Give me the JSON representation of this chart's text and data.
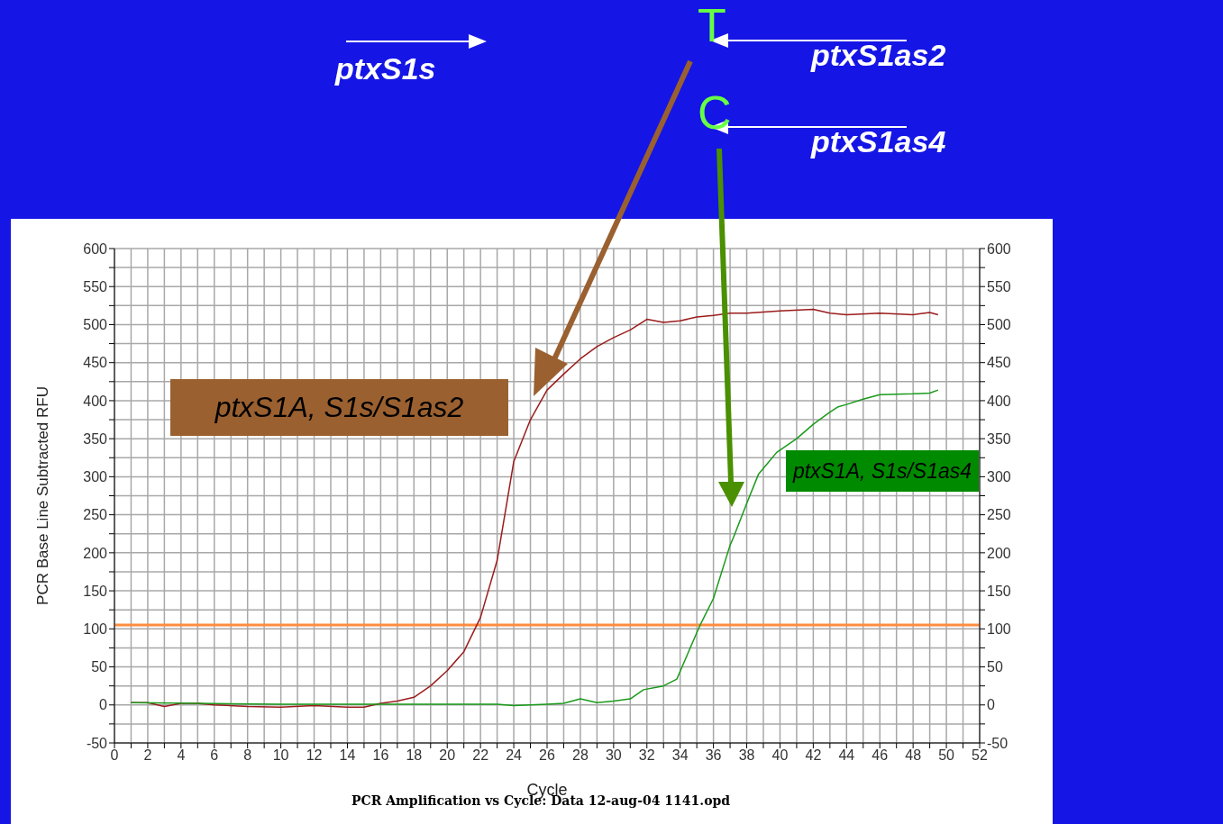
{
  "chart_data": {
    "type": "line",
    "xlabel": "Cycle",
    "ylabel": "PCR Base Line Subtracted RFU",
    "xlim": [
      0,
      52
    ],
    "ylim": [
      -50,
      600
    ],
    "y2lim": [
      -50,
      600
    ],
    "xticks": [
      0,
      {
        "value": 1,
        "label": null
      },
      2,
      {
        "value": 3,
        "label": null
      },
      4,
      {
        "value": 5,
        "label": null
      },
      6,
      {
        "value": 7,
        "label": null
      },
      8,
      {
        "value": 9,
        "label": null
      },
      10,
      {
        "value": 11,
        "label": null
      },
      12,
      {
        "value": 13,
        "label": null
      },
      14,
      {
        "value": 15,
        "label": null
      },
      16,
      {
        "value": 17,
        "label": null
      },
      18,
      {
        "value": 19,
        "label": null
      },
      20,
      {
        "value": 21,
        "label": null
      },
      22,
      {
        "value": 23,
        "label": null
      },
      24,
      {
        "value": 25,
        "label": null
      },
      26,
      {
        "value": 27,
        "label": null
      },
      28,
      {
        "value": 29,
        "label": null
      },
      30,
      {
        "value": 31,
        "label": null
      },
      32,
      {
        "value": 33,
        "label": null
      },
      34,
      {
        "value": 35,
        "label": null
      },
      36,
      {
        "value": 37,
        "label": null
      },
      38,
      {
        "value": 39,
        "label": null
      },
      40,
      {
        "value": 41,
        "label": null
      },
      42,
      {
        "value": 43,
        "label": null
      },
      44,
      {
        "value": 45,
        "label": null
      },
      46,
      {
        "value": 47,
        "label": null
      },
      48,
      {
        "value": 49,
        "label": null
      },
      50,
      {
        "value": 51,
        "label": null
      },
      52
    ],
    "yticks": [
      -50,
      {
        "value": -25,
        "label": null
      },
      0,
      {
        "value": 25,
        "label": null
      },
      50,
      {
        "value": 75,
        "label": null
      },
      100,
      {
        "value": 125,
        "label": null
      },
      150,
      {
        "value": 175,
        "label": null
      },
      200,
      {
        "value": 225,
        "label": null
      },
      250,
      {
        "value": 275,
        "label": null
      },
      300,
      {
        "value": 325,
        "label": null
      },
      350,
      {
        "value": 375,
        "label": null
      },
      400,
      {
        "value": 425,
        "label": null
      },
      450,
      {
        "value": 475,
        "label": null
      },
      500,
      {
        "value": 525,
        "label": null
      },
      550,
      {
        "value": 575,
        "label": null
      },
      600
    ],
    "y2ticks": [
      -50,
      {
        "value": -25,
        "label": null
      },
      0,
      {
        "value": 25,
        "label": null
      },
      50,
      {
        "value": 75,
        "label": null
      },
      100,
      {
        "value": 125,
        "label": null
      },
      150,
      {
        "value": 175,
        "label": null
      },
      200,
      {
        "value": 225,
        "label": null
      },
      250,
      {
        "value": 275,
        "label": null
      },
      300,
      {
        "value": 325,
        "label": null
      },
      350,
      {
        "value": 375,
        "label": null
      },
      400,
      {
        "value": 425,
        "label": null
      },
      450,
      {
        "value": 475,
        "label": null
      },
      500,
      {
        "value": 525,
        "label": null
      },
      550,
      {
        "value": 575,
        "label": null
      },
      600
    ],
    "grid": true,
    "legend": false,
    "marker": "none",
    "line_style": "solid",
    "series": [
      {
        "name": "ptxS1A, S1s/S1as2",
        "color": "#9b1c1c",
        "x": [
          1,
          2,
          3,
          4,
          5,
          6,
          8,
          10,
          12,
          14,
          15,
          16,
          17,
          18,
          19,
          20,
          21,
          22,
          23,
          24,
          25,
          26,
          27,
          28,
          29,
          30,
          31,
          32,
          33,
          34,
          35,
          36,
          37,
          38,
          40,
          42,
          43,
          44,
          46,
          48,
          49,
          49.5
        ],
        "values": [
          3,
          3,
          -2,
          2,
          2,
          0,
          -2,
          -3,
          -1,
          -3,
          -3,
          2,
          5,
          10,
          25,
          45,
          70,
          115,
          190,
          320,
          375,
          414,
          435,
          455,
          471,
          483,
          493,
          507,
          503,
          505,
          510,
          512,
          515,
          515,
          518,
          520,
          515,
          513,
          515,
          513,
          516,
          513
        ]
      },
      {
        "name": "ptxS1A, S1s/S1as4",
        "color": "#1a9a1a",
        "x": [
          1,
          5,
          10,
          15,
          20,
          23,
          24,
          26,
          27,
          28,
          29,
          30,
          31,
          31.8,
          33,
          33.8,
          35,
          35.2,
          36,
          37,
          37.2,
          38,
          38.7,
          39.8,
          41,
          42,
          43,
          43.5,
          44,
          45,
          46,
          48,
          49,
          49.5
        ],
        "values": [
          3,
          2,
          1,
          1,
          1,
          1,
          -1,
          1,
          2,
          8,
          3,
          5,
          8,
          20,
          25,
          34,
          95,
          105,
          140,
          210,
          220,
          265,
          303,
          332,
          350,
          369,
          385,
          392,
          395,
          402,
          408,
          409,
          410,
          414
        ]
      }
    ],
    "ref_lines": [
      {
        "axis": "y",
        "value": 105,
        "color": "#ff8c40",
        "line_style": "solid"
      }
    ],
    "annotations": [
      "ptxS1s",
      "ptxS1as2",
      "ptxS1as4",
      "T",
      "C",
      "PCR Amplification vs Cycle: Data 12-aug-04 1141.opd"
    ]
  }
}
